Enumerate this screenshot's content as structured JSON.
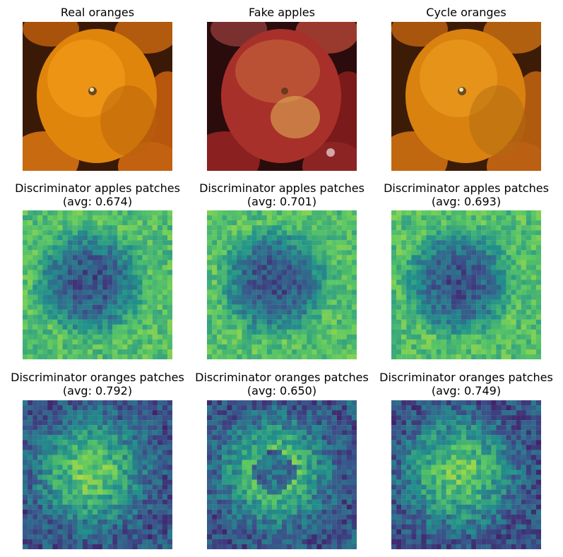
{
  "figure": {
    "rows": [
      {
        "cells": [
          {
            "title_line1": "Real oranges",
            "title_line2": "",
            "kind": "orange-photo"
          },
          {
            "title_line1": "Fake apples",
            "title_line2": "",
            "kind": "apple-photo"
          },
          {
            "title_line1": "Cycle oranges",
            "title_line2": "",
            "kind": "orange-photo"
          }
        ]
      },
      {
        "cells": [
          {
            "title_line1": "Discriminator apples patches",
            "title_line2": "(avg: 0.674)",
            "kind": "heatmap",
            "seed": 11
          },
          {
            "title_line1": "Discriminator apples patches",
            "title_line2": "(avg: 0.701)",
            "kind": "heatmap",
            "seed": 23
          },
          {
            "title_line1": "Discriminator apples patches",
            "title_line2": "(avg: 0.693)",
            "kind": "heatmap",
            "seed": 37
          }
        ]
      },
      {
        "cells": [
          {
            "title_line1": "Discriminator oranges patches",
            "title_line2": "(avg: 0.792)",
            "kind": "heatmap",
            "seed": 41
          },
          {
            "title_line1": "Discriminator oranges patches",
            "title_line2": "(avg: 0.650)",
            "kind": "heatmap",
            "seed": 53
          },
          {
            "title_line1": "Discriminator oranges patches",
            "title_line2": "(avg: 0.749)",
            "kind": "heatmap",
            "seed": 67
          }
        ]
      }
    ],
    "colormap": [
      "#440154",
      "#3b528b",
      "#21918c",
      "#5ec962",
      "#fde725"
    ]
  }
}
